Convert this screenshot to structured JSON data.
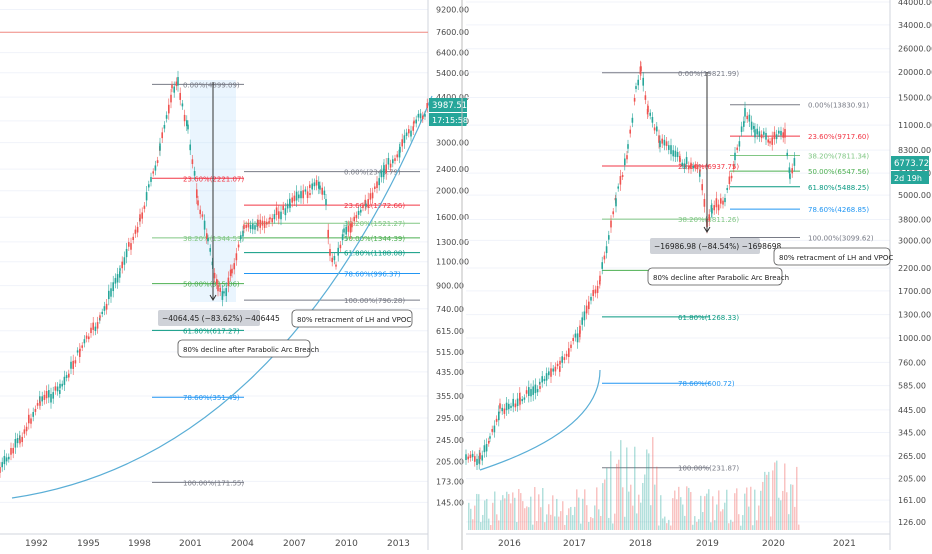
{
  "chart_data": [
    {
      "type": "candlestick",
      "y_scale": "log",
      "x_ticks": [
        "1992",
        "1995",
        "1998",
        "2001",
        "2004",
        "2007",
        "2010",
        "2013"
      ],
      "y_ticks": [
        145,
        173,
        205,
        245,
        295,
        355,
        435,
        515,
        615,
        740,
        900,
        1100,
        1300,
        1600,
        2000,
        2400,
        3000,
        3600,
        4400,
        5400,
        6400,
        7600,
        9200
      ],
      "y_tick_labels": [
        "145.00",
        "173.00",
        "205.00",
        "245.00",
        "295.00",
        "355.00",
        "435.00",
        "515.00",
        "615.00",
        "740.00",
        "900.00",
        "1100.00",
        "1300.00",
        "1600.00",
        "2000.00",
        "2400.00",
        "3000.00",
        "3600.00",
        "4400.00",
        "5400.00",
        "6400.00",
        "7600.00",
        "9200.00"
      ],
      "ylim": [
        125,
        9800
      ],
      "price_badge": {
        "value": "3987.51",
        "time": "17:15:58"
      },
      "horizontal_line": 7600,
      "fib_sets": [
        {
          "levels": [
            {
              "label": "0.00%(4899.09)",
              "value": 4899.09
            },
            {
              "label": "23.60%(2221.07)",
              "value": 2221.07
            },
            {
              "label": "38.20%(1344.53)",
              "value": 1344.53
            },
            {
              "label": "50.00%(915.06)",
              "value": 915.06
            },
            {
              "label": "61.80%(617.27)",
              "value": 617.27
            },
            {
              "label": "78.60%(351.49)",
              "value": 351.49
            },
            {
              "label": "100.00%(171.55)",
              "value": 171.55
            }
          ]
        },
        {
          "levels": [
            {
              "label": "0.00%(2349.79)",
              "value": 2349.79
            },
            {
              "label": "23.60%(1772.66)",
              "value": 1772.66
            },
            {
              "label": "38.20%(1521.27)",
              "value": 1521.27
            },
            {
              "label": "50.00%(1344.39)",
              "value": 1344.39
            },
            {
              "label": "61.80%(1188.08)",
              "value": 1188.08
            },
            {
              "label": "78.60%(996.37)",
              "value": 996.37
            },
            {
              "label": "100.00%(796.28)",
              "value": 796.28
            }
          ]
        }
      ],
      "measure_label": "−4064.45 (−83.62%) −406445",
      "annotations": [
        "80% decline after Parabolic Arc Breach",
        "80% retracment of LH and VPOC"
      ]
    },
    {
      "type": "candlestick",
      "y_scale": "log",
      "x_ticks": [
        "2016",
        "2017",
        "2018",
        "2019",
        "2020",
        "2021"
      ],
      "y_ticks": [
        126,
        161,
        205,
        265,
        345,
        445,
        585,
        760,
        1000,
        1300,
        1700,
        2200,
        3000,
        3800,
        5000,
        6400,
        8300,
        11000,
        15000,
        20000,
        26000,
        34000,
        44000
      ],
      "y_tick_labels": [
        "126.00",
        "161.00",
        "205.00",
        "265.00",
        "345.00",
        "445.00",
        "585.00",
        "760.00",
        "1000.00",
        "1300.00",
        "1700.00",
        "2200.00",
        "3000.00",
        "3800.00",
        "5000.00",
        "6400.00",
        "8300.00",
        "11000.00",
        "15000.00",
        "20000.00",
        "26000.00",
        "34000.00",
        "44000.00"
      ],
      "ylim": [
        115,
        44000
      ],
      "price_badge": {
        "value": "6773.72",
        "time": "2d 19h"
      },
      "fib_sets": [
        {
          "levels": [
            {
              "label": "0.00%(19821.99)",
              "value": 19821.99
            },
            {
              "label": "23.60%(6937.75)",
              "value": 6937.75
            },
            {
              "label": "38.20%(3811.26)",
              "value": 3811.26
            },
            {
              "label": "50.00%(2141.80)",
              "value": 2141.8
            },
            {
              "label": "61.80%(1268.33)",
              "value": 1268.33
            },
            {
              "label": "78.60%(600.72)",
              "value": 600.72
            },
            {
              "label": "100.00%(231.87)",
              "value": 231.87
            }
          ]
        },
        {
          "levels": [
            {
              "label": "0.00%(13830.91)",
              "value": 13830.91
            },
            {
              "label": "23.60%(9717.60)",
              "value": 9717.6
            },
            {
              "label": "38.20%(7811.34)",
              "value": 7811.34
            },
            {
              "label": "50.00%(6547.56)",
              "value": 6547.56
            },
            {
              "label": "61.80%(5488.25)",
              "value": 5488.25
            },
            {
              "label": "78.60%(4268.85)",
              "value": 4268.85
            },
            {
              "label": "100.00%(3099.62)",
              "value": 3099.62
            }
          ]
        }
      ],
      "measure_label": "−16986.98 (−84.54%) −1698698",
      "annotations": [
        "80% decline after Parabolic Arc Breach",
        "80% retracment of LH and VPOC"
      ]
    }
  ],
  "colors": {
    "up": "#26a69a",
    "down": "#ef5350",
    "parabola": "#5aaed6",
    "fib_0": "#787b86",
    "fib_236": "#f23645",
    "fib_382": "#81c784",
    "fib_50": "#4caf50",
    "fib_618": "#089981",
    "fib_786": "#2196f3",
    "fib_100": "#787b86",
    "badge": "#26a69a",
    "axis_text": "#4a4a4a",
    "grid": "#f0f3fa",
    "hline": "#f28b82"
  }
}
